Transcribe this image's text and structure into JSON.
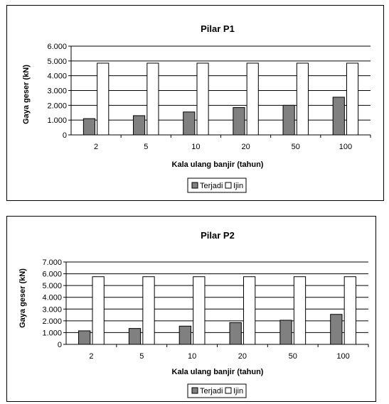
{
  "chart_data": [
    {
      "type": "bar",
      "title": "Pilar P1",
      "xlabel": "Kala ulang banjir (tahun)",
      "ylabel": "Gaya geser (kN)",
      "categories": [
        "2",
        "5",
        "10",
        "20",
        "50",
        "100"
      ],
      "ylim": [
        0,
        6000
      ],
      "yticks": [
        "0",
        "1.000",
        "2.000",
        "3.000",
        "4.000",
        "5.000",
        "6.000"
      ],
      "series": [
        {
          "name": "Terjadi",
          "values": [
            1100,
            1300,
            1550,
            1850,
            2000,
            2550
          ],
          "color": "#808080"
        },
        {
          "name": "Ijin",
          "values": [
            4850,
            4850,
            4850,
            4850,
            4850,
            4850
          ],
          "color": "#ffffff"
        }
      ],
      "grid": true,
      "legend": "bottom"
    },
    {
      "type": "bar",
      "title": "Pilar P2",
      "xlabel": "Kala ulang banjir (tahun)",
      "ylabel": "Gaya geser (kN)",
      "categories": [
        "2",
        "5",
        "10",
        "20",
        "50",
        "100"
      ],
      "ylim": [
        0,
        7000
      ],
      "yticks": [
        "0",
        "1.000",
        "2.000",
        "3.000",
        "4.000",
        "5.000",
        "6.000",
        "7.000"
      ],
      "series": [
        {
          "name": "Terjadi",
          "values": [
            1150,
            1350,
            1550,
            1850,
            2050,
            2550
          ],
          "color": "#808080"
        },
        {
          "name": "Ijin",
          "values": [
            5750,
            5750,
            5750,
            5750,
            5750,
            5750
          ],
          "color": "#ffffff"
        }
      ],
      "grid": true,
      "legend": "bottom"
    }
  ]
}
